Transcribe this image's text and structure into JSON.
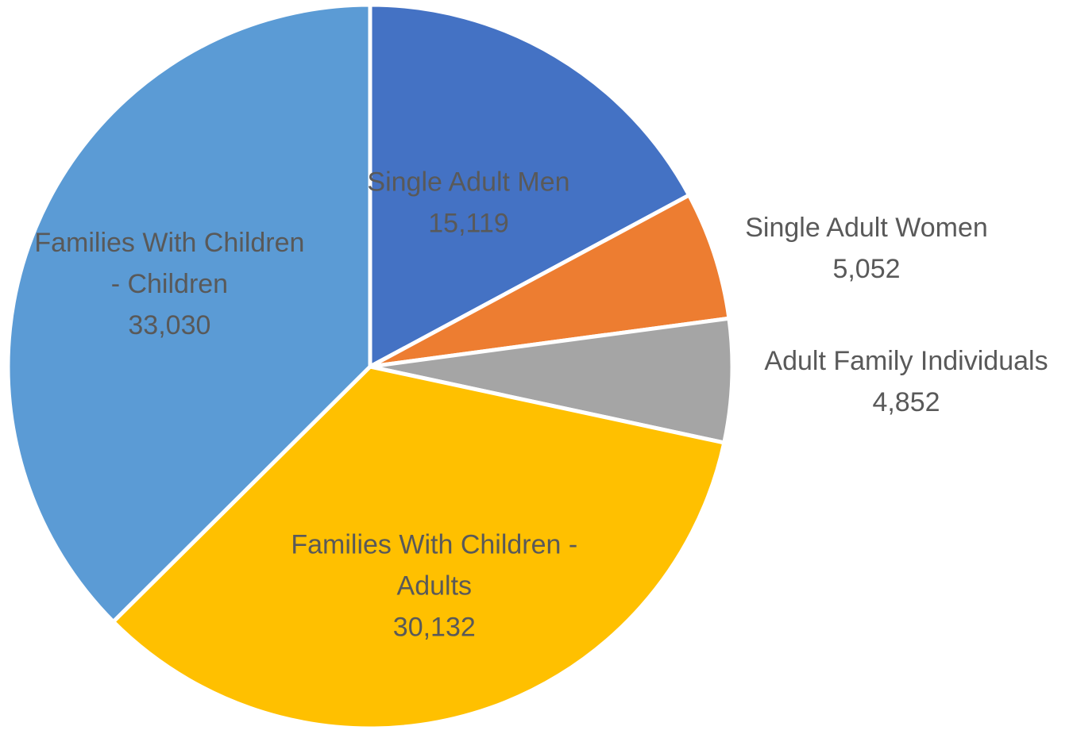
{
  "chart_data": {
    "type": "pie",
    "title": "",
    "start_angle_deg": 0,
    "direction": "clockwise",
    "legend": "none",
    "slices": [
      {
        "category": "Single Adult Men",
        "value": 15119,
        "value_label": "15,119",
        "label_lines": [
          "Single Adult Men",
          "15,119"
        ],
        "color": "#4472C4",
        "label_placement": "inside"
      },
      {
        "category": "Single Adult Women",
        "value": 5052,
        "value_label": "5,052",
        "label_lines": [
          "Single Adult Women",
          "5,052"
        ],
        "color": "#ED7D31",
        "label_placement": "outside"
      },
      {
        "category": "Adult Family Individuals",
        "value": 4852,
        "value_label": "4,852",
        "label_lines": [
          "Adult Family Individuals",
          "4,852"
        ],
        "color": "#A5A5A5",
        "label_placement": "outside"
      },
      {
        "category": "Families With Children - Adults",
        "value": 30132,
        "value_label": "30,132",
        "label_lines": [
          "Families With Children -",
          "Adults",
          "30,132"
        ],
        "color": "#FFC000",
        "label_placement": "inside"
      },
      {
        "category": "Families With Children - Children",
        "value": 33030,
        "value_label": "33,030",
        "label_lines": [
          "Families With Children",
          "- Children",
          "33,030"
        ],
        "color": "#5B9BD5",
        "label_placement": "inside"
      }
    ]
  }
}
